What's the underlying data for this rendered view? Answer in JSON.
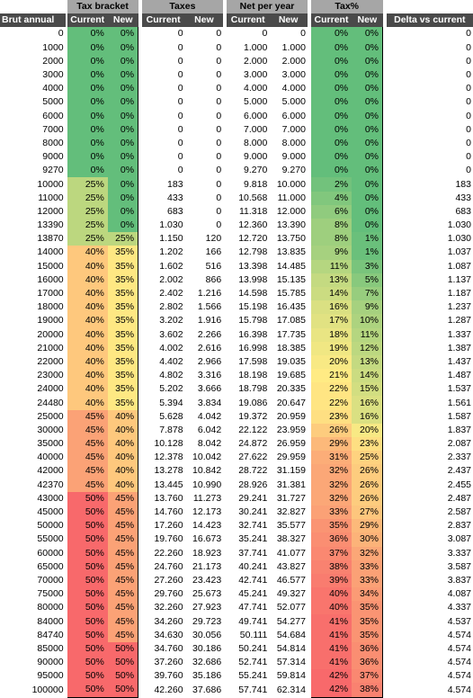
{
  "headers": {
    "group_tax_bracket": "Tax bracket",
    "group_taxes": "Taxes",
    "group_net_per_year": "Net per year",
    "group_tax_pct": "Tax%",
    "brut_annual": "Brut annual",
    "current": "Current",
    "new": "New",
    "delta": "Delta vs current"
  },
  "rows": [
    [
      "0",
      "0%",
      "0%",
      "0",
      "0",
      "0",
      "0",
      "0%",
      "0%",
      "0"
    ],
    [
      "1000",
      "0%",
      "0%",
      "0",
      "0",
      "1.000",
      "1.000",
      "0%",
      "0%",
      "0"
    ],
    [
      "2000",
      "0%",
      "0%",
      "0",
      "0",
      "2.000",
      "2.000",
      "0%",
      "0%",
      "0"
    ],
    [
      "3000",
      "0%",
      "0%",
      "0",
      "0",
      "3.000",
      "3.000",
      "0%",
      "0%",
      "0"
    ],
    [
      "4000",
      "0%",
      "0%",
      "0",
      "0",
      "4.000",
      "4.000",
      "0%",
      "0%",
      "0"
    ],
    [
      "5000",
      "0%",
      "0%",
      "0",
      "0",
      "5.000",
      "5.000",
      "0%",
      "0%",
      "0"
    ],
    [
      "6000",
      "0%",
      "0%",
      "0",
      "0",
      "6.000",
      "6.000",
      "0%",
      "0%",
      "0"
    ],
    [
      "7000",
      "0%",
      "0%",
      "0",
      "0",
      "7.000",
      "7.000",
      "0%",
      "0%",
      "0"
    ],
    [
      "8000",
      "0%",
      "0%",
      "0",
      "0",
      "8.000",
      "8.000",
      "0%",
      "0%",
      "0"
    ],
    [
      "9000",
      "0%",
      "0%",
      "0",
      "0",
      "9.000",
      "9.000",
      "0%",
      "0%",
      "0"
    ],
    [
      "9270",
      "0%",
      "0%",
      "0",
      "0",
      "9.270",
      "9.270",
      "0%",
      "0%",
      "0"
    ],
    [
      "10000",
      "25%",
      "0%",
      "183",
      "0",
      "9.818",
      "10.000",
      "2%",
      "0%",
      "183"
    ],
    [
      "11000",
      "25%",
      "0%",
      "433",
      "0",
      "10.568",
      "11.000",
      "4%",
      "0%",
      "433"
    ],
    [
      "12000",
      "25%",
      "0%",
      "683",
      "0",
      "11.318",
      "12.000",
      "6%",
      "0%",
      "683"
    ],
    [
      "13390",
      "25%",
      "0%",
      "1.030",
      "0",
      "12.360",
      "13.390",
      "8%",
      "0%",
      "1.030"
    ],
    [
      "13870",
      "25%",
      "25%",
      "1.150",
      "120",
      "12.720",
      "13.750",
      "8%",
      "1%",
      "1.030"
    ],
    [
      "14000",
      "40%",
      "35%",
      "1.202",
      "166",
      "12.798",
      "13.835",
      "9%",
      "1%",
      "1.037"
    ],
    [
      "15000",
      "40%",
      "35%",
      "1.602",
      "516",
      "13.398",
      "14.485",
      "11%",
      "3%",
      "1.087"
    ],
    [
      "16000",
      "40%",
      "35%",
      "2.002",
      "866",
      "13.998",
      "15.135",
      "13%",
      "5%",
      "1.137"
    ],
    [
      "17000",
      "40%",
      "35%",
      "2.402",
      "1.216",
      "14.598",
      "15.785",
      "14%",
      "7%",
      "1.187"
    ],
    [
      "18000",
      "40%",
      "35%",
      "2.802",
      "1.566",
      "15.198",
      "16.435",
      "16%",
      "9%",
      "1.237"
    ],
    [
      "19000",
      "40%",
      "35%",
      "3.202",
      "1.916",
      "15.798",
      "17.085",
      "17%",
      "10%",
      "1.287"
    ],
    [
      "20000",
      "40%",
      "35%",
      "3.602",
      "2.266",
      "16.398",
      "17.735",
      "18%",
      "11%",
      "1.337"
    ],
    [
      "21000",
      "40%",
      "35%",
      "4.002",
      "2.616",
      "16.998",
      "18.385",
      "19%",
      "12%",
      "1.387"
    ],
    [
      "22000",
      "40%",
      "35%",
      "4.402",
      "2.966",
      "17.598",
      "19.035",
      "20%",
      "13%",
      "1.437"
    ],
    [
      "23000",
      "40%",
      "35%",
      "4.802",
      "3.316",
      "18.198",
      "19.685",
      "21%",
      "14%",
      "1.487"
    ],
    [
      "24000",
      "40%",
      "35%",
      "5.202",
      "3.666",
      "18.798",
      "20.335",
      "22%",
      "15%",
      "1.537"
    ],
    [
      "24480",
      "40%",
      "35%",
      "5.394",
      "3.834",
      "19.086",
      "20.647",
      "22%",
      "16%",
      "1.561"
    ],
    [
      "25000",
      "45%",
      "40%",
      "5.628",
      "4.042",
      "19.372",
      "20.959",
      "23%",
      "16%",
      "1.587"
    ],
    [
      "30000",
      "45%",
      "40%",
      "7.878",
      "6.042",
      "22.122",
      "23.959",
      "26%",
      "20%",
      "1.837"
    ],
    [
      "35000",
      "45%",
      "40%",
      "10.128",
      "8.042",
      "24.872",
      "26.959",
      "29%",
      "23%",
      "2.087"
    ],
    [
      "40000",
      "45%",
      "40%",
      "12.378",
      "10.042",
      "27.622",
      "29.959",
      "31%",
      "25%",
      "2.337"
    ],
    [
      "42000",
      "45%",
      "40%",
      "13.278",
      "10.842",
      "28.722",
      "31.159",
      "32%",
      "26%",
      "2.437"
    ],
    [
      "42370",
      "45%",
      "40%",
      "13.445",
      "10.990",
      "28.926",
      "31.381",
      "32%",
      "26%",
      "2.455"
    ],
    [
      "43000",
      "50%",
      "45%",
      "13.760",
      "11.273",
      "29.241",
      "31.727",
      "32%",
      "26%",
      "2.487"
    ],
    [
      "45000",
      "50%",
      "45%",
      "14.760",
      "12.173",
      "30.241",
      "32.827",
      "33%",
      "27%",
      "2.587"
    ],
    [
      "50000",
      "50%",
      "45%",
      "17.260",
      "14.423",
      "32.741",
      "35.577",
      "35%",
      "29%",
      "2.837"
    ],
    [
      "55000",
      "50%",
      "45%",
      "19.760",
      "16.673",
      "35.241",
      "38.327",
      "36%",
      "30%",
      "3.087"
    ],
    [
      "60000",
      "50%",
      "45%",
      "22.260",
      "18.923",
      "37.741",
      "41.077",
      "37%",
      "32%",
      "3.337"
    ],
    [
      "65000",
      "50%",
      "45%",
      "24.760",
      "21.173",
      "40.241",
      "43.827",
      "38%",
      "33%",
      "3.587"
    ],
    [
      "70000",
      "50%",
      "45%",
      "27.260",
      "23.423",
      "42.741",
      "46.577",
      "39%",
      "33%",
      "3.837"
    ],
    [
      "75000",
      "50%",
      "45%",
      "29.760",
      "25.673",
      "45.241",
      "49.327",
      "40%",
      "34%",
      "4.087"
    ],
    [
      "80000",
      "50%",
      "45%",
      "32.260",
      "27.923",
      "47.741",
      "52.077",
      "40%",
      "35%",
      "4.337"
    ],
    [
      "84000",
      "50%",
      "45%",
      "34.260",
      "29.723",
      "49.741",
      "54.277",
      "41%",
      "35%",
      "4.537"
    ],
    [
      "84740",
      "50%",
      "45%",
      "34.630",
      "30.056",
      "50.111",
      "54.684",
      "41%",
      "35%",
      "4.574"
    ],
    [
      "85000",
      "50%",
      "50%",
      "34.760",
      "30.186",
      "50.241",
      "54.814",
      "41%",
      "36%",
      "4.574"
    ],
    [
      "90000",
      "50%",
      "50%",
      "37.260",
      "32.686",
      "52.741",
      "57.314",
      "41%",
      "36%",
      "4.574"
    ],
    [
      "95000",
      "50%",
      "50%",
      "39.760",
      "35.186",
      "55.241",
      "59.814",
      "42%",
      "37%",
      "4.574"
    ],
    [
      "100000",
      "50%",
      "50%",
      "42.260",
      "37.686",
      "57.741",
      "62.314",
      "42%",
      "38%",
      "4.574"
    ]
  ],
  "bracket_colors": {
    "0%": "#63be7b",
    "25%": "#bcd77f",
    "35%": "#fee883",
    "40%": "#fec87d",
    "45%": "#fba276",
    "50%": "#f8696b"
  },
  "tax_pct_scale": [
    "#63be7b",
    "#ffeb84",
    "#f8696b"
  ],
  "tax_pct_max": 42
}
